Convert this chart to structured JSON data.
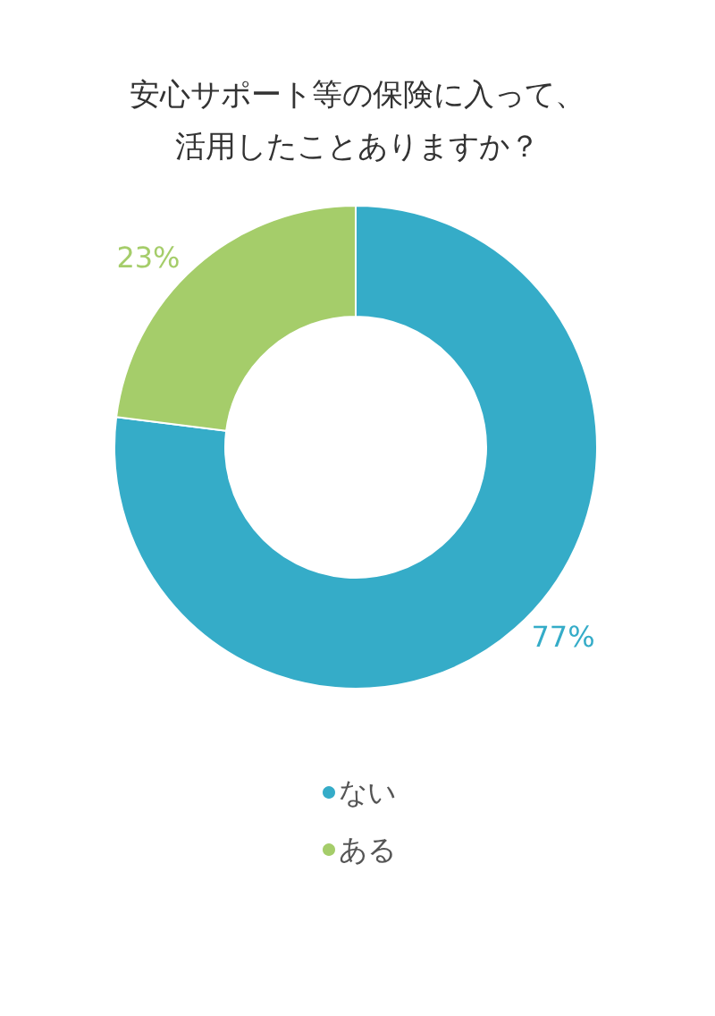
{
  "chart_data": {
    "type": "donut",
    "title": "安心サポート等の保険に入って、活用したことありますか？",
    "categories": [
      "ない",
      "ある"
    ],
    "values": [
      77,
      23
    ],
    "colors": [
      "#35acc8",
      "#a5cd6a"
    ],
    "value_labels": [
      "77%",
      "23%"
    ],
    "legend": "bottom"
  }
}
